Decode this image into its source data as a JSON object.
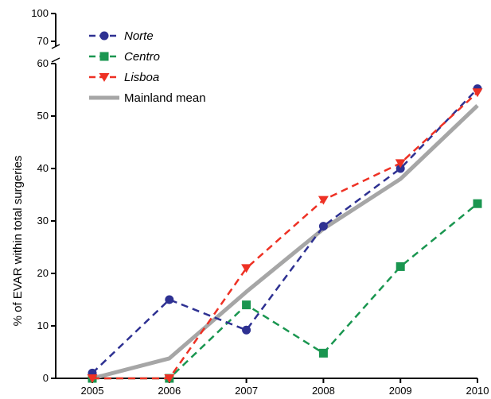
{
  "chart_data": {
    "type": "line",
    "title": "",
    "xlabel": "",
    "ylabel": "% of EVAR within total surgeries",
    "x": [
      "2005",
      "2006",
      "2007",
      "2008",
      "2009",
      "2010"
    ],
    "ylim": [
      0,
      100
    ],
    "y_axis_break": {
      "lower_max": 60,
      "upper_ticks": [
        70,
        100
      ]
    },
    "yticks": [
      0,
      10,
      20,
      30,
      40,
      50,
      60
    ],
    "grid": false,
    "legend_position": "top-left",
    "series": [
      {
        "name": "Norte",
        "italic": true,
        "color": "#2e3192",
        "marker": "circle",
        "dash": true,
        "values": [
          1,
          15,
          9.2,
          29,
          40,
          55.2
        ]
      },
      {
        "name": "Centro",
        "italic": true,
        "color": "#1a9650",
        "marker": "square",
        "dash": true,
        "values": [
          0,
          0,
          14,
          4.8,
          21.3,
          33.3
        ]
      },
      {
        "name": "Lisboa",
        "italic": true,
        "color": "#ee3124",
        "marker": "triangle-down",
        "dash": true,
        "values": [
          0,
          0,
          21,
          34,
          41,
          54.5
        ]
      },
      {
        "name": "Mainland mean",
        "italic": false,
        "color": "#a6a6a6",
        "marker": "none",
        "dash": false,
        "values": [
          0,
          3.8,
          16.5,
          28.5,
          38,
          52
        ]
      }
    ]
  }
}
